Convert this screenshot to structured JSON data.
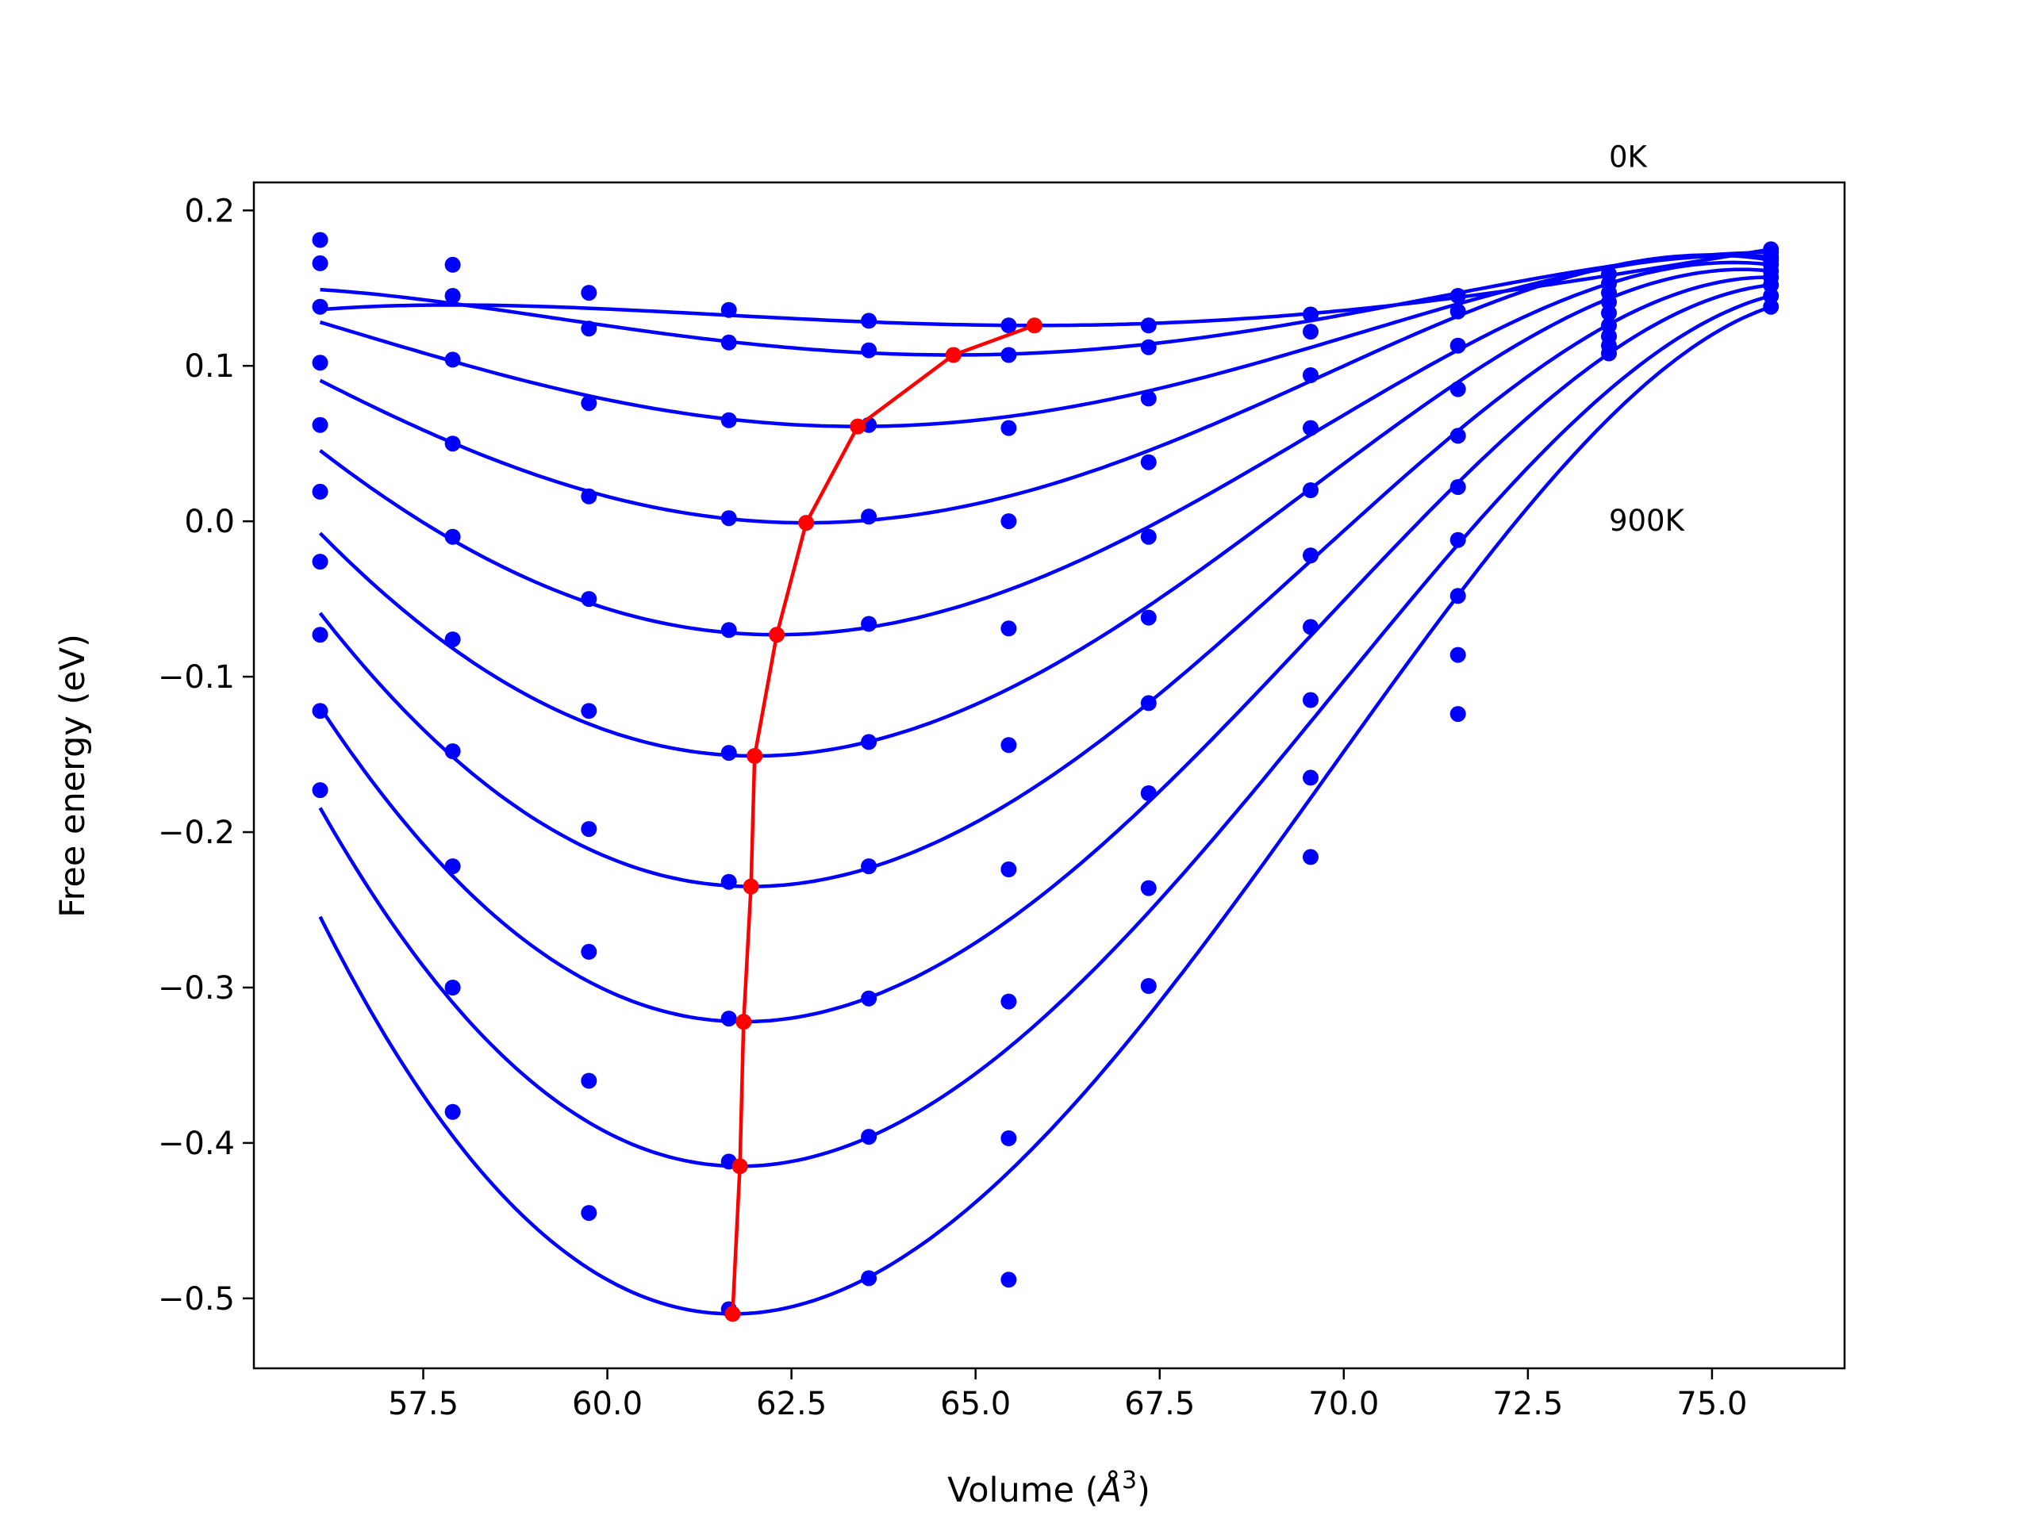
{
  "chart_data": {
    "type": "line",
    "title": "",
    "xlabel": "Volume",
    "xlabel_unit": "Å",
    "xlabel_unit_exp": "3",
    "ylabel": "Free energy (eV)",
    "xlim": [
      55.2,
      76.8
    ],
    "ylim": [
      -0.545,
      0.218
    ],
    "xticks": [
      57.5,
      60.0,
      62.5,
      65.0,
      67.5,
      70.0,
      72.5,
      75.0
    ],
    "xtick_labels": [
      "57.5",
      "60.0",
      "62.5",
      "65.0",
      "67.5",
      "70.0",
      "72.5",
      "75.0"
    ],
    "yticks": [
      0.2,
      0.1,
      0.0,
      -0.1,
      -0.2,
      -0.3,
      -0.4,
      -0.5
    ],
    "ytick_labels": [
      "0.2",
      "0.1",
      "0.0",
      "−0.1",
      "−0.2",
      "−0.3",
      "−0.4",
      "−0.5"
    ],
    "grid": false,
    "legend": "none",
    "annotations": [
      {
        "text": "0K",
        "x": 73.6,
        "y": 0.228
      },
      {
        "text": "900K",
        "x": 73.6,
        "y": -0.006
      }
    ],
    "colors": {
      "points": "#0000ff",
      "curves": "#0000ff",
      "minima": "#ff0000"
    },
    "volumes": [
      56.1,
      57.9,
      59.75,
      61.65,
      63.55,
      65.45,
      67.35,
      69.55,
      71.55,
      73.6,
      75.8
    ],
    "series": [
      {
        "values": [
          0.181,
          0.165,
          0.147,
          0.136,
          0.129,
          0.126,
          0.126,
          0.133,
          0.145,
          0.159,
          0.175
        ]
      },
      {
        "values": [
          0.166,
          0.145,
          0.124,
          0.115,
          0.11,
          0.107,
          0.112,
          0.122,
          0.135,
          0.153,
          0.173
        ]
      },
      {
        "values": [
          0.138,
          0.104,
          0.076,
          0.065,
          0.062,
          0.06,
          0.079,
          0.094,
          0.113,
          0.147,
          0.17
        ]
      },
      {
        "values": [
          0.102,
          0.05,
          0.016,
          0.002,
          0.003,
          0.0,
          0.038,
          0.06,
          0.085,
          0.141,
          0.168
        ]
      },
      {
        "values": [
          0.062,
          -0.01,
          -0.05,
          -0.07,
          -0.066,
          -0.069,
          -0.01,
          0.02,
          0.055,
          0.134,
          0.165
        ]
      },
      {
        "values": [
          0.019,
          -0.076,
          -0.122,
          -0.149,
          -0.142,
          -0.144,
          -0.062,
          -0.022,
          0.022,
          0.126,
          0.161
        ]
      },
      {
        "values": [
          -0.026,
          -0.148,
          -0.198,
          -0.232,
          -0.222,
          -0.224,
          -0.117,
          -0.068,
          -0.012,
          0.119,
          0.157
        ]
      },
      {
        "values": [
          -0.073,
          -0.222,
          -0.277,
          -0.32,
          -0.307,
          -0.309,
          -0.175,
          -0.115,
          -0.048,
          0.113,
          0.152
        ]
      },
      {
        "values": [
          -0.122,
          -0.3,
          -0.36,
          -0.412,
          -0.396,
          -0.397,
          -0.236,
          -0.165,
          -0.086,
          0.108,
          0.145
        ]
      },
      {
        "values": [
          -0.173,
          -0.38,
          -0.445,
          -0.507,
          -0.487,
          -0.488,
          -0.299,
          -0.216,
          -0.124,
          null,
          0.138
        ]
      }
    ],
    "fits": [
      {
        "v0": 65.8,
        "e0": 0.126,
        "a": 0.0005,
        "b": 2e-05
      },
      {
        "v0": 64.7,
        "e0": 0.107,
        "a": 0.001,
        "b": 1e-05
      },
      {
        "v0": 63.4,
        "e0": 0.061,
        "a": 0.00155,
        "b": 0.0
      },
      {
        "v0": 62.7,
        "e0": -0.001,
        "a": 0.00235,
        "b": -1e-05
      },
      {
        "v0": 62.3,
        "e0": -0.073,
        "a": 0.0031,
        "b": -4e-05
      },
      {
        "v0": 62.0,
        "e0": -0.151,
        "a": 0.00395,
        "b": -7e-05
      },
      {
        "v0": 61.95,
        "e0": -0.235,
        "a": 0.0048,
        "b": -0.0001
      },
      {
        "v0": 61.85,
        "e0": -0.322,
        "a": 0.0056,
        "b": -0.00013
      },
      {
        "v0": 61.8,
        "e0": -0.415,
        "a": 0.0064,
        "b": -0.00016
      },
      {
        "v0": 61.7,
        "e0": -0.51,
        "a": 0.0073,
        "b": -0.00019
      }
    ],
    "minima": {
      "x": [
        65.8,
        64.7,
        63.4,
        62.7,
        62.3,
        62.0,
        61.95,
        61.85,
        61.8,
        61.7
      ],
      "y": [
        0.126,
        0.107,
        0.061,
        -0.001,
        -0.073,
        -0.151,
        -0.235,
        -0.322,
        -0.415,
        -0.51
      ]
    }
  }
}
